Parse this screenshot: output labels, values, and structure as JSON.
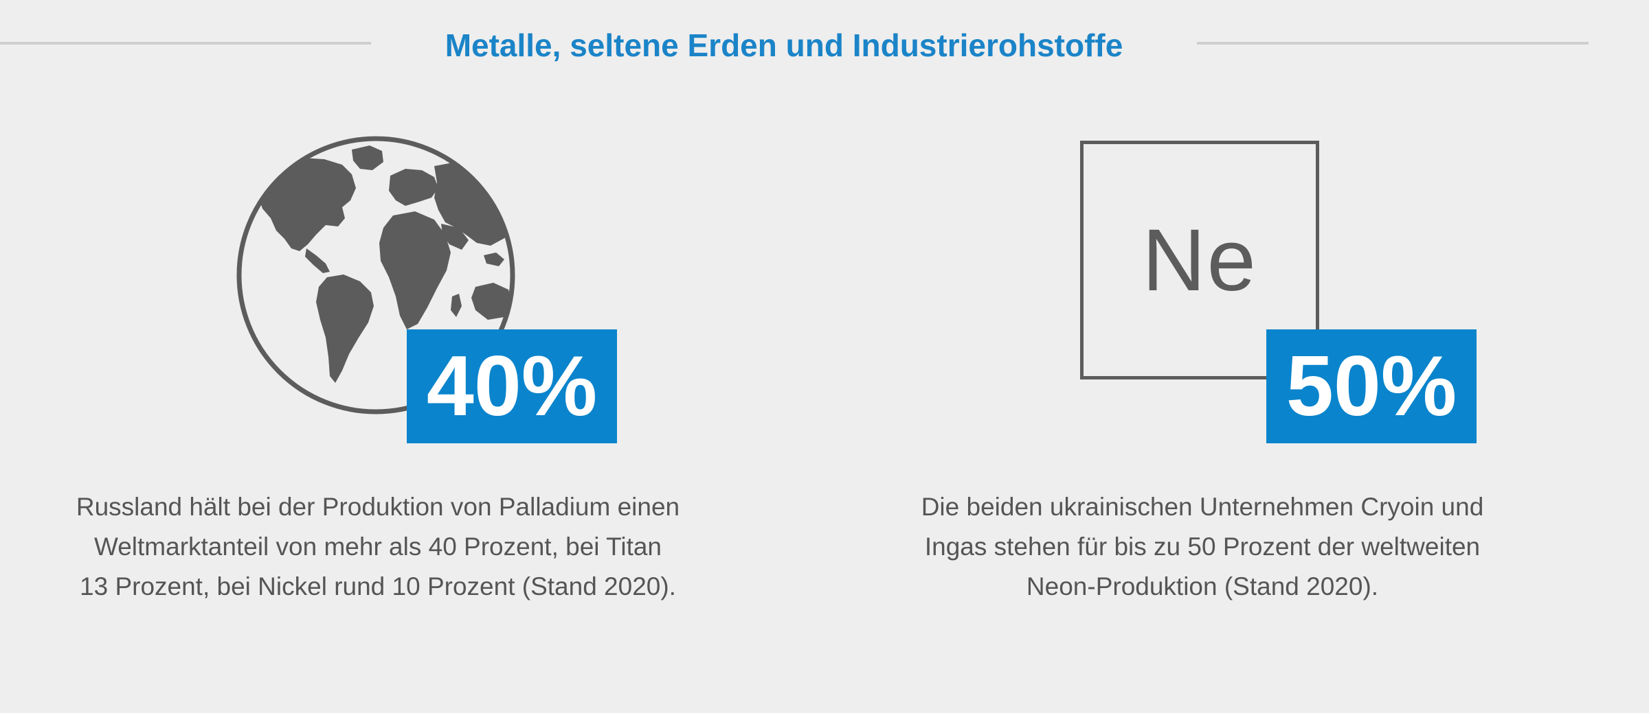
{
  "header": {
    "title": "Metalle, seltene Erden und Industrierohstoffe"
  },
  "colors": {
    "accent": "#1b84c8",
    "badge": "#0a84cc",
    "icon": "#5c5c5c",
    "background": "#eeeeee",
    "text": "#555555"
  },
  "left_panel": {
    "icon": "globe-icon",
    "stat": "40%",
    "caption_lines": [
      "Russland hält bei der Produktion von Palladium einen",
      "Weltmarktanteil von mehr als 40 Prozent, bei Titan",
      "13 Prozent, bei Nickel rund 10 Prozent (Stand 2020)."
    ]
  },
  "right_panel": {
    "icon": "element-tile-icon",
    "symbol": "Ne",
    "stat": "50%",
    "caption_lines": [
      "Die beiden ukrainischen Unternehmen Cryoin und",
      "Ingas stehen für bis zu 50 Prozent der weltweiten",
      "Neon-Produktion (Stand 2020)."
    ]
  }
}
